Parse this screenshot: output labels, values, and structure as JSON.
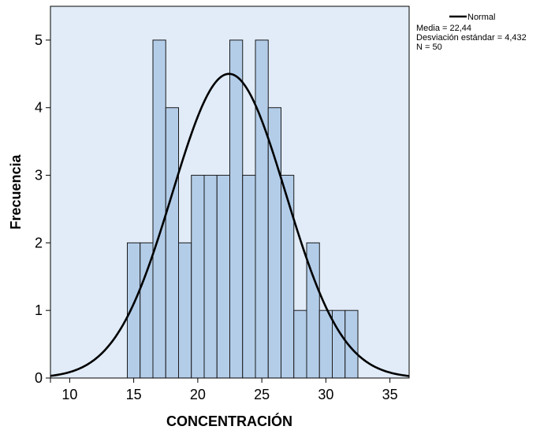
{
  "chart_data": {
    "type": "bar",
    "title": "",
    "xlabel": "CONCENTRACIÓN",
    "ylabel": "Frecuencia",
    "xlim": [
      8.5,
      36.5
    ],
    "ylim": [
      0,
      5.5
    ],
    "x_ticks": [
      "10",
      "15",
      "20",
      "25",
      "30",
      "35"
    ],
    "y_ticks": [
      "0",
      "1",
      "2",
      "3",
      "4",
      "5"
    ],
    "grid": false,
    "background_color": "#e1ecf8",
    "bar_color": "#b3cde9",
    "bar_edge_color": "#1a1a1a",
    "curve_color": "#000000",
    "bin_width": 1,
    "bins": [
      {
        "start": 14.5,
        "count": 2
      },
      {
        "start": 15.5,
        "count": 2
      },
      {
        "start": 16.5,
        "count": 5
      },
      {
        "start": 17.5,
        "count": 4
      },
      {
        "start": 18.5,
        "count": 2
      },
      {
        "start": 19.5,
        "count": 3
      },
      {
        "start": 20.5,
        "count": 3
      },
      {
        "start": 21.5,
        "count": 3
      },
      {
        "start": 22.5,
        "count": 5
      },
      {
        "start": 23.5,
        "count": 3
      },
      {
        "start": 24.5,
        "count": 5
      },
      {
        "start": 25.5,
        "count": 4
      },
      {
        "start": 26.5,
        "count": 3
      },
      {
        "start": 27.5,
        "count": 1
      },
      {
        "start": 28.5,
        "count": 2
      },
      {
        "start": 29.5,
        "count": 1
      },
      {
        "start": 30.5,
        "count": 1
      },
      {
        "start": 31.5,
        "count": 1
      }
    ],
    "normal_curve": {
      "mean": 22.44,
      "sd": 4.432,
      "n": 50
    },
    "legend": {
      "placement": "top-right",
      "line_label": "Normal",
      "stats": [
        "Media = 22,44",
        "Desviación estándar = 4,432",
        "N = 50"
      ]
    }
  }
}
